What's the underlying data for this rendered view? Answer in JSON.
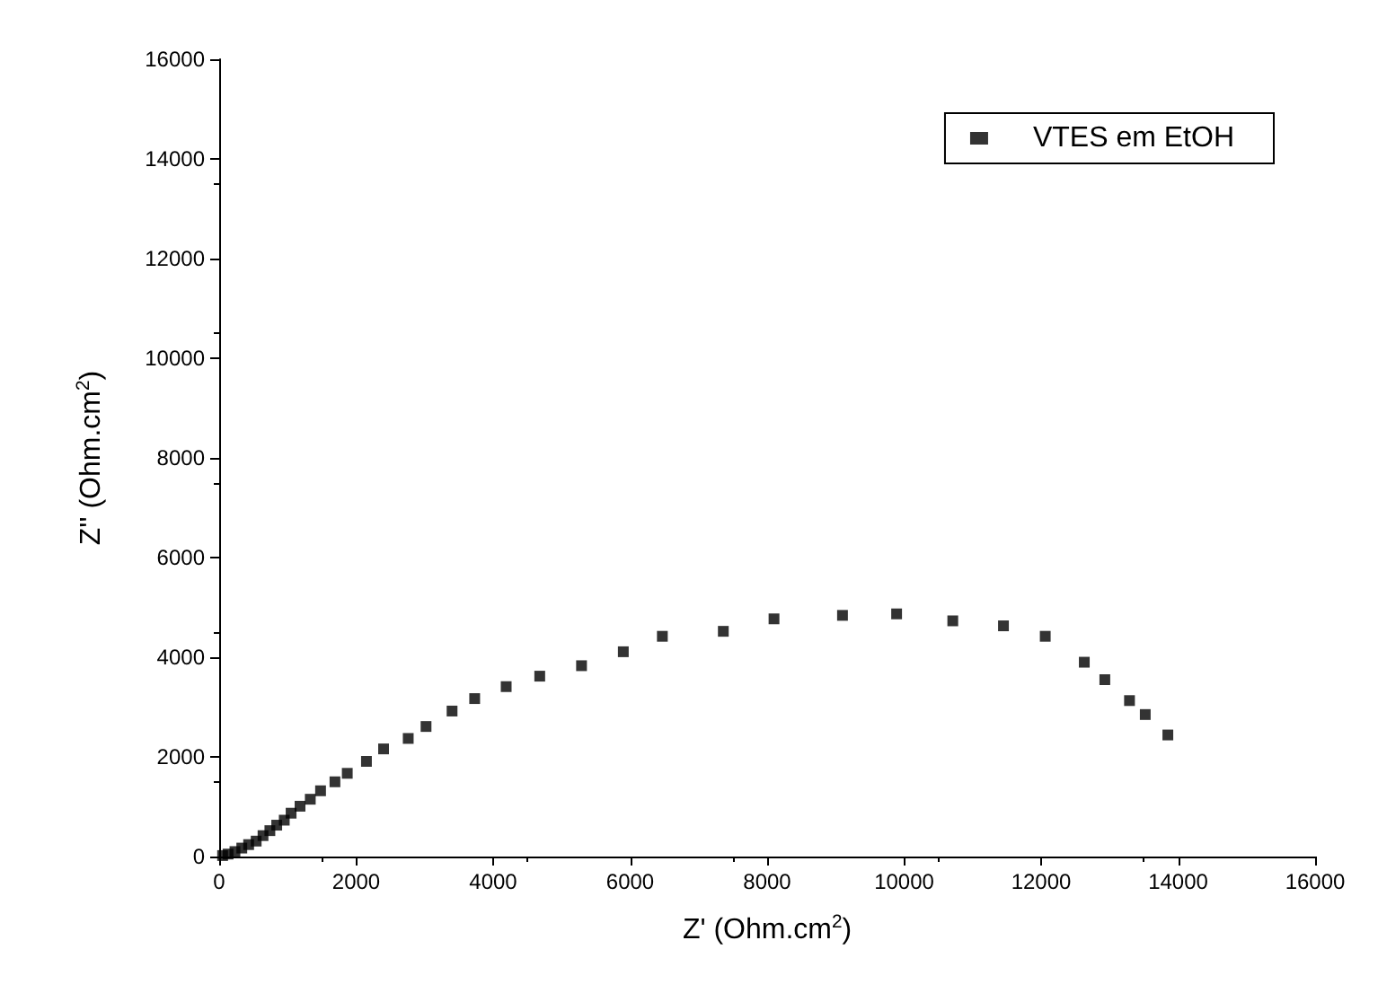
{
  "chart_data": {
    "type": "scatter",
    "xlabel": "Z' (Ohm.cm$^{2}$)",
    "ylabel": "Z'' (Ohm.cm$^{2}$)",
    "xlim": [
      0,
      16000
    ],
    "xticks": [
      0,
      2000,
      4000,
      6000,
      8000,
      10000,
      12000,
      14000,
      16000
    ],
    "ylim": [
      0,
      16000
    ],
    "yticks": [
      0,
      2000,
      4000,
      6000,
      8000,
      10000,
      12000,
      14000,
      16000
    ],
    "grid": false,
    "legend": "top right",
    "marker": "square",
    "series": [
      {
        "name": "VTES em EtOH",
        "color": "#000000",
        "x": [
          50,
          130,
          230,
          330,
          430,
          540,
          640,
          740,
          840,
          950,
          1050,
          1180,
          1330,
          1480,
          1690,
          1870,
          2150,
          2400,
          2760,
          3020,
          3400,
          3730,
          4190,
          4680,
          5290,
          5900,
          6470,
          7360,
          8100,
          9100,
          9890,
          10710,
          11450,
          12060,
          12630,
          12930,
          13290,
          13520,
          13850
        ],
        "values": [
          20,
          50,
          100,
          170,
          240,
          310,
          420,
          520,
          630,
          730,
          870,
          1010,
          1150,
          1320,
          1500,
          1670,
          1910,
          2160,
          2370,
          2610,
          2920,
          3170,
          3410,
          3620,
          3830,
          4110,
          4420,
          4520,
          4770,
          4840,
          4870,
          4730,
          4630,
          4420,
          3900,
          3550,
          3130,
          2850,
          2440
        ]
      }
    ]
  }
}
